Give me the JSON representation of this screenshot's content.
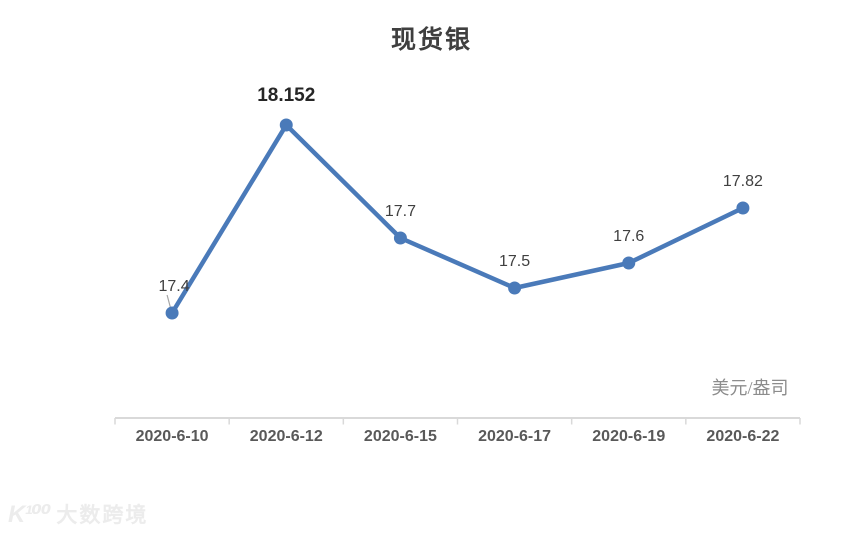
{
  "title": "现货银",
  "unit_label": "美元/盎司",
  "watermark": {
    "logo": "K¹⁰⁰",
    "text": "大数跨境"
  },
  "chart_data": {
    "type": "line",
    "title": "现货银",
    "categories": [
      "2020-6-10",
      "2020-6-12",
      "2020-6-15",
      "2020-6-17",
      "2020-6-19",
      "2020-6-22"
    ],
    "series": [
      {
        "name": "现货银",
        "values": [
          17.4,
          18.152,
          17.7,
          17.5,
          17.6,
          17.82
        ]
      }
    ],
    "data_labels": [
      "17.4",
      "18.152",
      "17.7",
      "17.5",
      "17.6",
      "17.82"
    ],
    "emphasized_index": 1,
    "xlabel": "",
    "ylabel": "美元/盎司",
    "ylim": [
      16.98,
      18.4
    ],
    "gridlines": false,
    "legend": "none",
    "colors": {
      "line": "#4a7ab9",
      "marker": "#4a7ab9",
      "axis": "#d9d9d9",
      "data_label": "#404040",
      "emphasized_label": "#262626",
      "tick_label": "#595959",
      "leader_line": "#a6a6a6"
    }
  }
}
